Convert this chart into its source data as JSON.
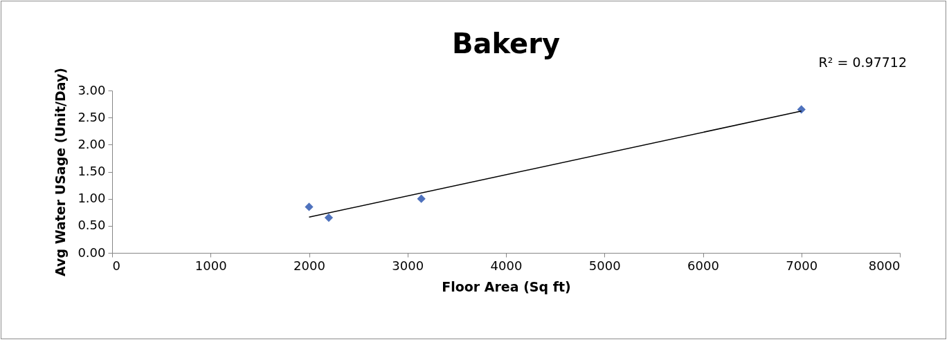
{
  "chart_data": {
    "type": "scatter",
    "title": "Bakery",
    "xlabel": "Floor Area (Sq ft)",
    "ylabel": "Avg Water USage (Unit/Day)",
    "annotations": [
      "R² = 0.97712"
    ],
    "x": [
      2000,
      2200,
      3140,
      7000
    ],
    "series": [
      {
        "color": "#4f72bd",
        "values": [
          0.85,
          0.65,
          1.0,
          2.65
        ]
      },
      {
        "type": "line",
        "marker": "none",
        "color": "#000000",
        "x": [
          2000,
          7000
        ],
        "values": [
          0.66,
          2.62
        ]
      }
    ],
    "marker": "diamond",
    "grid": false,
    "xlim": [
      0,
      8000
    ],
    "xticks": [
      0,
      1000,
      2000,
      3000,
      4000,
      5000,
      6000,
      7000,
      8000
    ],
    "ylim": [
      0,
      3
    ],
    "yticks": [
      {
        "value": 0,
        "label": "0.00"
      },
      {
        "value": 0.5,
        "label": "0.50"
      },
      {
        "value": 1,
        "label": "1.00"
      },
      {
        "value": 1.5,
        "label": "1.50"
      },
      {
        "value": 2,
        "label": "2.00"
      },
      {
        "value": 2.5,
        "label": "2.50"
      },
      {
        "value": 3,
        "label": "3.00"
      }
    ]
  }
}
